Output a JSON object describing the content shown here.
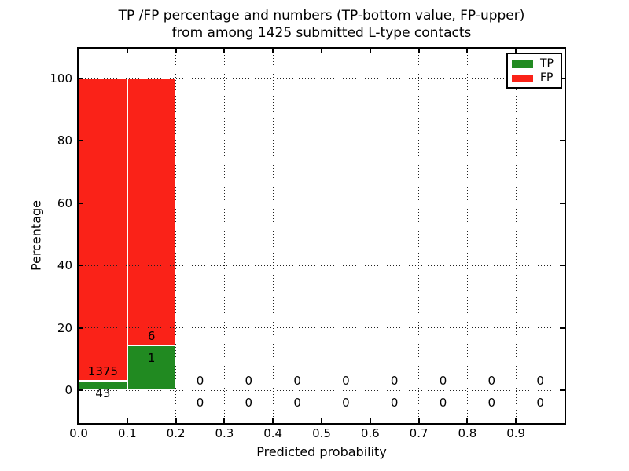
{
  "chart_data": {
    "type": "bar",
    "stacked": true,
    "title_line1": "TP /FP percentage and numbers (TP-bottom value, FP-upper)",
    "title_line2": "from among 1425 submitted L-type contacts",
    "xlabel": "Predicted probability",
    "ylabel": "Percentage",
    "total_contacts": 1425,
    "xlim": [
      0.0,
      1.0
    ],
    "ylim": [
      -10.6,
      109.4
    ],
    "x_ticks": [
      0.0,
      0.1,
      0.2,
      0.3,
      0.4,
      0.5,
      0.6,
      0.7,
      0.8,
      0.9
    ],
    "x_tick_labels": [
      "0.0",
      "0.1",
      "0.2",
      "0.3",
      "0.4",
      "0.5",
      "0.6",
      "0.7",
      "0.8",
      "0.9"
    ],
    "y_ticks": [
      0,
      20,
      40,
      60,
      80,
      100
    ],
    "y_tick_labels": [
      "0",
      "20",
      "40",
      "60",
      "80",
      "100"
    ],
    "grid": "dotted",
    "legend": {
      "position": "upper right",
      "entries": [
        {
          "label": "TP",
          "color": "#218a21"
        },
        {
          "label": "FP",
          "color": "#fa2218"
        }
      ]
    },
    "bins": [
      {
        "range": [
          0.0,
          0.1
        ],
        "tp_count": 43,
        "fp_count": 1375,
        "tp_pct": 3.03,
        "fp_pct": 96.97
      },
      {
        "range": [
          0.1,
          0.2
        ],
        "tp_count": 1,
        "fp_count": 6,
        "tp_pct": 14.29,
        "fp_pct": 85.71
      },
      {
        "range": [
          0.2,
          0.3
        ],
        "tp_count": 0,
        "fp_count": 0,
        "tp_pct": 0,
        "fp_pct": 0
      },
      {
        "range": [
          0.3,
          0.4
        ],
        "tp_count": 0,
        "fp_count": 0,
        "tp_pct": 0,
        "fp_pct": 0
      },
      {
        "range": [
          0.4,
          0.5
        ],
        "tp_count": 0,
        "fp_count": 0,
        "tp_pct": 0,
        "fp_pct": 0
      },
      {
        "range": [
          0.5,
          0.6
        ],
        "tp_count": 0,
        "fp_count": 0,
        "tp_pct": 0,
        "fp_pct": 0
      },
      {
        "range": [
          0.6,
          0.7
        ],
        "tp_count": 0,
        "fp_count": 0,
        "tp_pct": 0,
        "fp_pct": 0
      },
      {
        "range": [
          0.7,
          0.8
        ],
        "tp_count": 0,
        "fp_count": 0,
        "tp_pct": 0,
        "fp_pct": 0
      },
      {
        "range": [
          0.8,
          0.9
        ],
        "tp_count": 0,
        "fp_count": 0,
        "tp_pct": 0,
        "fp_pct": 0
      },
      {
        "range": [
          0.9,
          1.0
        ],
        "tp_count": 0,
        "fp_count": 0,
        "tp_pct": 0,
        "fp_pct": 0
      }
    ]
  },
  "colors": {
    "tp": "#218a21",
    "fp": "#fa2218",
    "grid": "#222222",
    "spine": "#000000",
    "background": "#ffffff"
  }
}
